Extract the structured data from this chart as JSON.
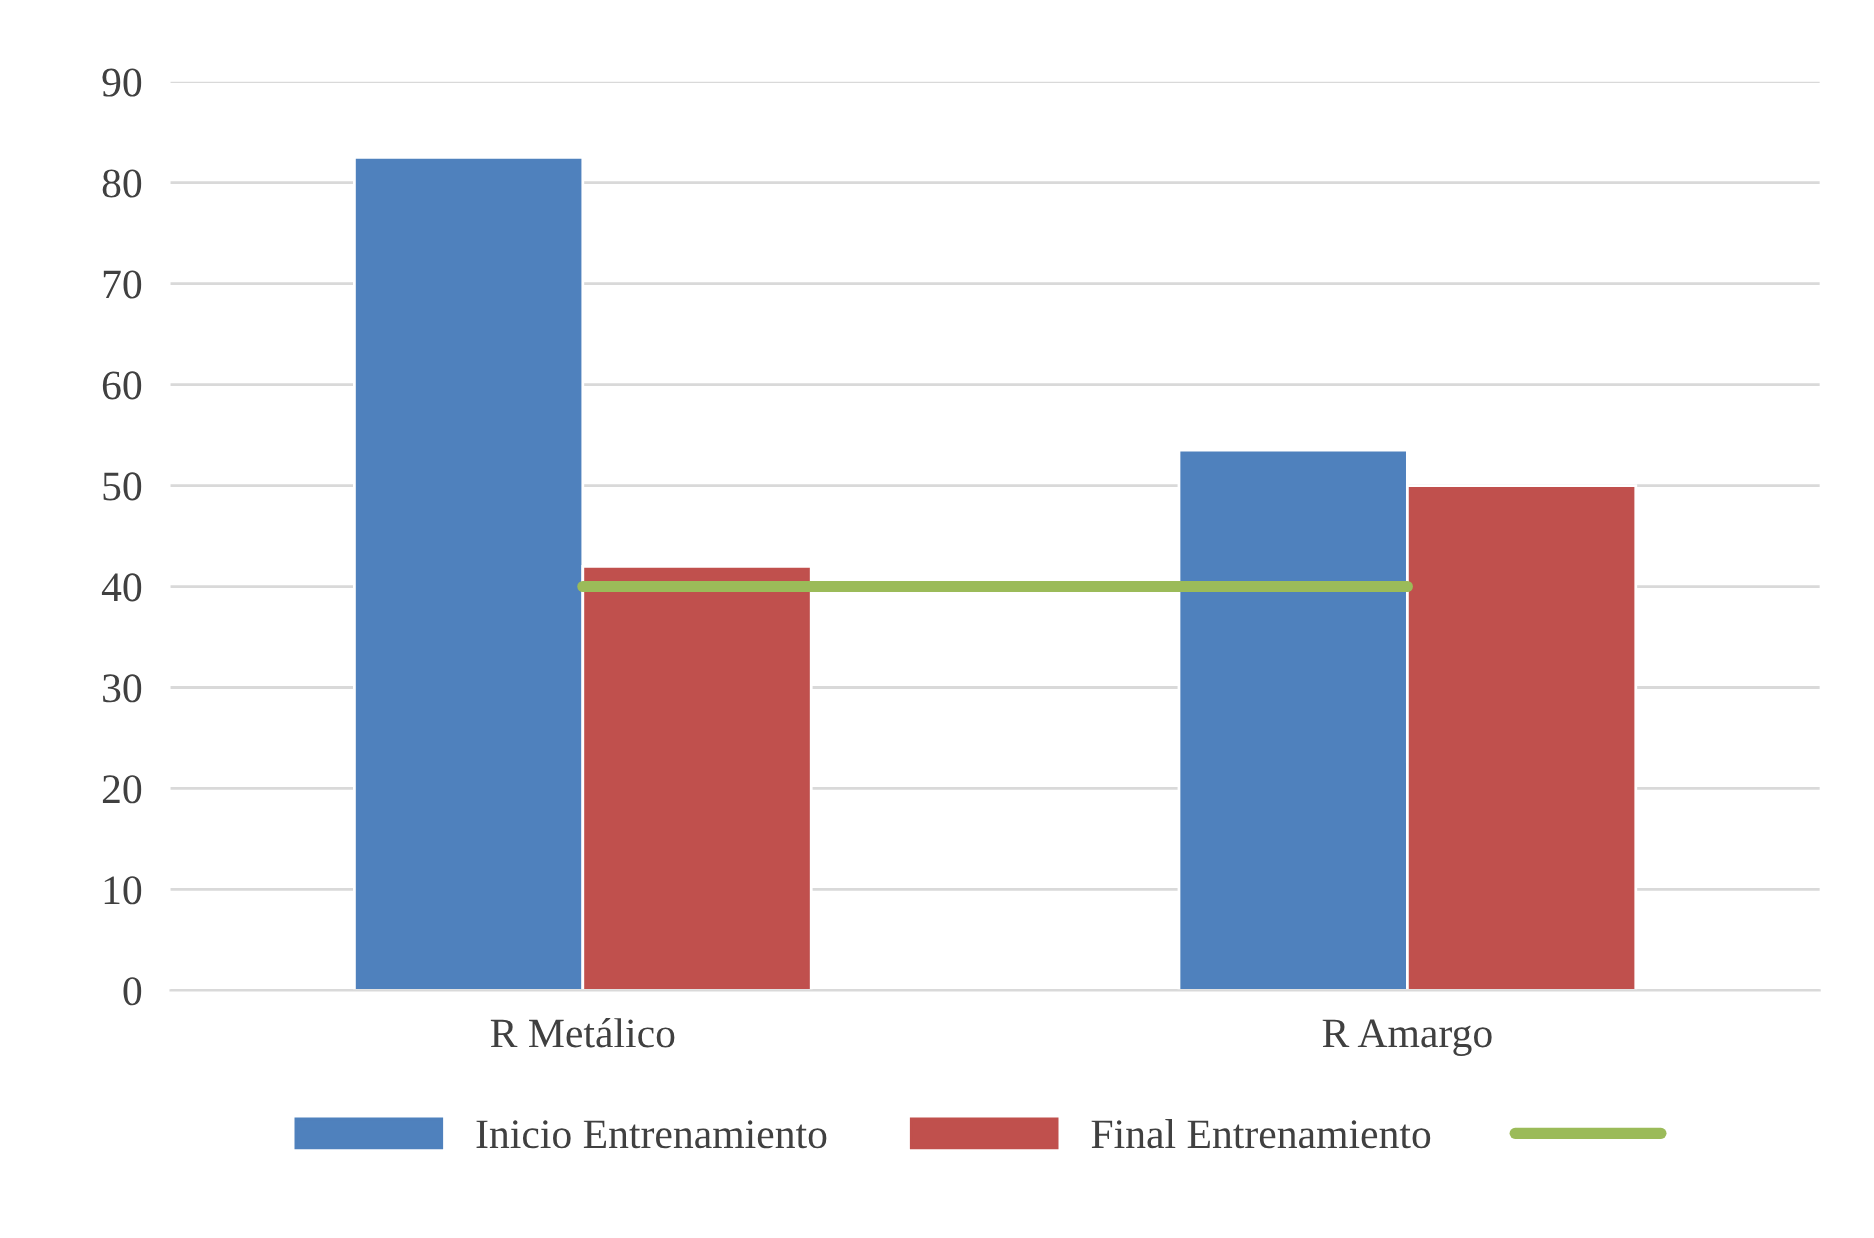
{
  "chart_data": {
    "type": "bar",
    "categories": [
      "R Metálico",
      "R Amargo"
    ],
    "series": [
      {
        "name": "Inicio Entrenamiento",
        "color": "#4f81bd",
        "values": [
          82.5,
          53.5
        ]
      },
      {
        "name": "Final Entrenamiento",
        "color": "#c0504d",
        "values": [
          42,
          50
        ]
      },
      {
        "type": "line",
        "color": "#9bbb59",
        "values": [
          40,
          40
        ]
      }
    ],
    "ylim": [
      0,
      90
    ],
    "yticks": [
      0,
      10,
      20,
      30,
      40,
      50,
      60,
      70,
      80,
      90
    ],
    "grid": "y",
    "legend": "bottom"
  }
}
